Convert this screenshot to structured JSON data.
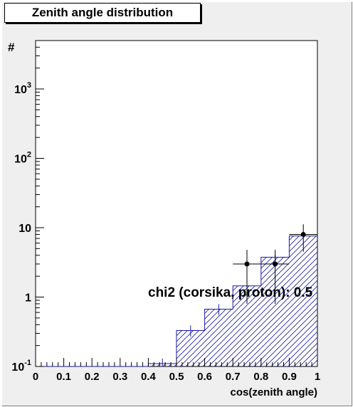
{
  "chart_data": {
    "type": "histogram",
    "title": "Zenith angle distribution",
    "xlabel": "cos(zenith angle)",
    "ylabel": "#",
    "xlim": [
      0,
      1
    ],
    "ylim": [
      0.1,
      5000
    ],
    "log_y": true,
    "grid": false,
    "x_ticks": [
      0,
      0.1,
      0.2,
      0.3,
      0.4,
      0.5,
      0.6,
      0.7,
      0.8,
      0.9,
      1
    ],
    "x_tick_labels": [
      "0",
      "0.1",
      "0.2",
      "0.3",
      "0.4",
      "0.5",
      "0.6",
      "0.7",
      "0.8",
      "0.9",
      "1"
    ],
    "y_ticks": [
      {
        "value": 0.1,
        "base": "10",
        "exp": "-1"
      },
      {
        "value": 1,
        "base": "1",
        "exp": ""
      },
      {
        "value": 10,
        "base": "10",
        "exp": ""
      },
      {
        "value": 100,
        "base": "10",
        "exp": "2"
      },
      {
        "value": 1000,
        "base": "10",
        "exp": "3"
      }
    ],
    "histogram": {
      "bin_edges": [
        0,
        0.1,
        0.2,
        0.3,
        0.4,
        0.5,
        0.6,
        0.7,
        0.8,
        0.9,
        1.0
      ],
      "values": [
        0.1,
        0.1,
        0.1,
        0.1,
        0.11,
        0.33,
        0.67,
        1.45,
        3.75,
        7.6
      ],
      "errors_low": [
        0,
        0,
        0,
        0,
        0.02,
        0.06,
        0.12,
        0.2,
        0.4,
        0.6
      ],
      "errors_high": [
        0,
        0,
        0,
        0,
        0.02,
        0.06,
        0.12,
        0.2,
        0.4,
        0.6
      ],
      "fill": "hatched",
      "color": "#1a1aa6"
    },
    "data_points": {
      "x": [
        0.75,
        0.85,
        0.95
      ],
      "y": [
        3,
        3,
        8
      ],
      "x_err": [
        0.05,
        0.05,
        0.05
      ],
      "y_err_low": [
        2.2,
        2.2,
        3.5
      ],
      "y_err_high": [
        1.8,
        1.8,
        3.2
      ],
      "color": "#000000"
    },
    "annotation": "chi2 (corsika, proton): 0.5"
  }
}
